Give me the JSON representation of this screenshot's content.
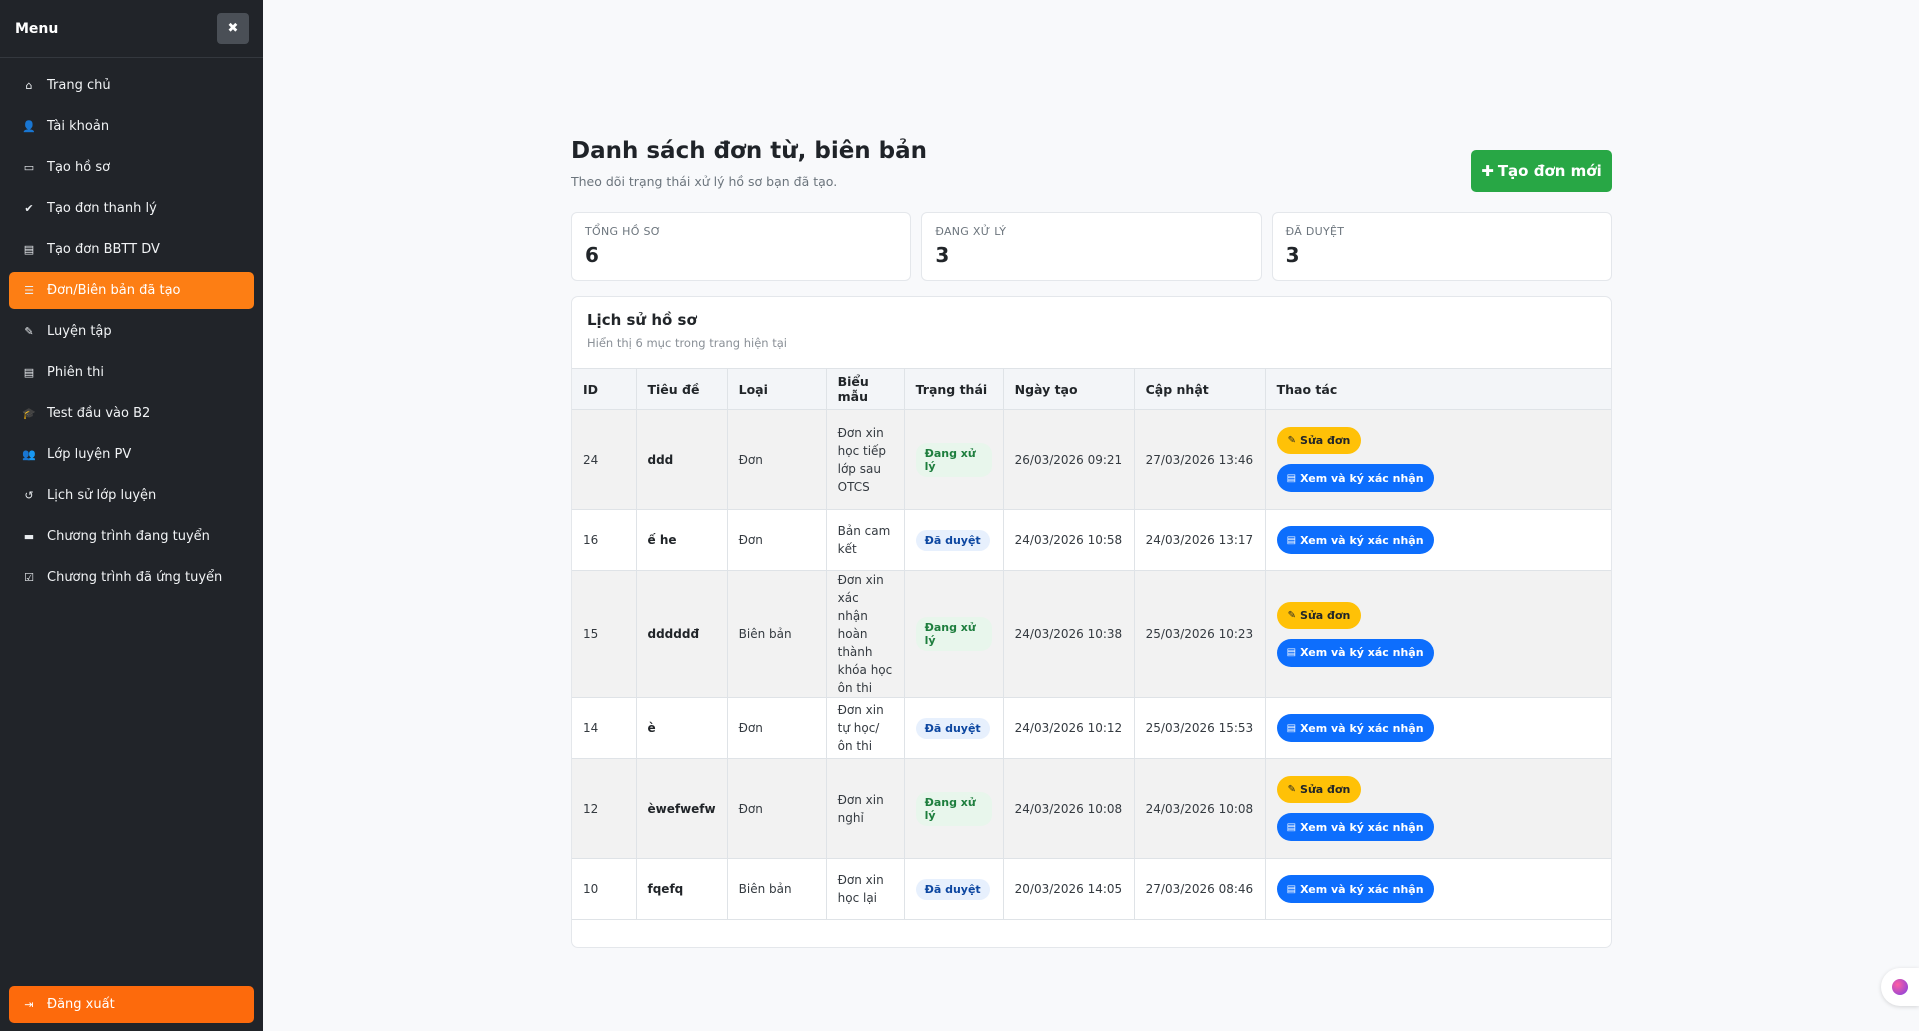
{
  "sidebar": {
    "title": "Menu",
    "close_icon": "✖",
    "items": [
      {
        "icon": "⌂",
        "label": "Trang chủ",
        "active": false
      },
      {
        "icon": "👤",
        "label": "Tài khoản",
        "active": false
      },
      {
        "icon": "▭",
        "label": "Tạo hồ sơ",
        "active": false
      },
      {
        "icon": "✔",
        "label": "Tạo đơn thanh lý",
        "active": false
      },
      {
        "icon": "▤",
        "label": "Tạo đơn BBTT DV",
        "active": false
      },
      {
        "icon": "☰",
        "label": "Đơn/Biên bản đã tạo",
        "active": true
      },
      {
        "icon": "✎",
        "label": "Luyện tập",
        "active": false
      },
      {
        "icon": "▤",
        "label": "Phiên thi",
        "active": false
      },
      {
        "icon": "🎓",
        "label": "Test đầu vào B2",
        "active": false
      },
      {
        "icon": "👥",
        "label": "Lớp luyện PV",
        "active": false
      },
      {
        "icon": "↺",
        "label": "Lịch sử lớp luyện",
        "active": false
      },
      {
        "icon": "▬",
        "label": "Chương trình đang tuyển",
        "active": false
      },
      {
        "icon": "☑",
        "label": "Chương trình đã ứng tuyển",
        "active": false
      }
    ],
    "logout": {
      "icon": "⇥",
      "label": "Đăng xuất"
    }
  },
  "header": {
    "title": "Danh sách đơn từ, biên bản",
    "subtitle": "Theo dõi trạng thái xử lý hồ sơ bạn đã tạo.",
    "new_button": "Tạo đơn mới",
    "new_button_icon": "✚"
  },
  "stats": [
    {
      "label": "TỔNG HỒ SƠ",
      "value": "6"
    },
    {
      "label": "ĐANG XỬ LÝ",
      "value": "3"
    },
    {
      "label": "ĐÃ DUYỆT",
      "value": "3"
    }
  ],
  "history": {
    "title": "Lịch sử hồ sơ",
    "subtitle": "Hiển thị 6 mục trong trang hiện tại",
    "columns": [
      "ID",
      "Tiêu đề",
      "Loại",
      "Biểu mẫu",
      "Trạng thái",
      "Ngày tạo",
      "Cập nhật",
      "Thao tác"
    ],
    "edit_label": "Sửa đơn",
    "view_label": "Xem và ký xác nhận",
    "rows": [
      {
        "id": "24",
        "title": "ddd",
        "type": "Đơn",
        "template": "Đơn xin học tiếp lớp sau OTCS",
        "status": "Đang xử lý",
        "created": "26/03/2026 09:21",
        "updated": "27/03/2026 13:46"
      },
      {
        "id": "16",
        "title": "ế he",
        "type": "Đơn",
        "template": "Bản cam kết",
        "status": "Đã duyệt",
        "created": "24/03/2026 10:58",
        "updated": "24/03/2026 13:17"
      },
      {
        "id": "15",
        "title": "dddddđ",
        "type": "Biên bản",
        "template": "Đơn xin xác nhận hoàn thành khóa học ôn thi",
        "status": "Đang xử lý",
        "created": "24/03/2026 10:38",
        "updated": "25/03/2026 10:23"
      },
      {
        "id": "14",
        "title": "è",
        "type": "Đơn",
        "template": "Đơn xin tự học/ ôn thi",
        "status": "Đã duyệt",
        "created": "24/03/2026 10:12",
        "updated": "25/03/2026 15:53"
      },
      {
        "id": "12",
        "title": "èwefwefw",
        "type": "Đơn",
        "template": "Đơn xin nghỉ",
        "status": "Đang xử lý",
        "created": "24/03/2026 10:08",
        "updated": "24/03/2026 10:08"
      },
      {
        "id": "10",
        "title": "fqefq",
        "type": "Biên bản",
        "template": "Đơn xin học lại",
        "status": "Đã duyệt",
        "created": "20/03/2026 14:05",
        "updated": "27/03/2026 08:46"
      }
    ]
  },
  "colors": {
    "accent": "#fd7e14",
    "success": "#28a745",
    "primary": "#0d6efd",
    "warning": "#ffc107",
    "sidebar_bg": "#212429"
  }
}
